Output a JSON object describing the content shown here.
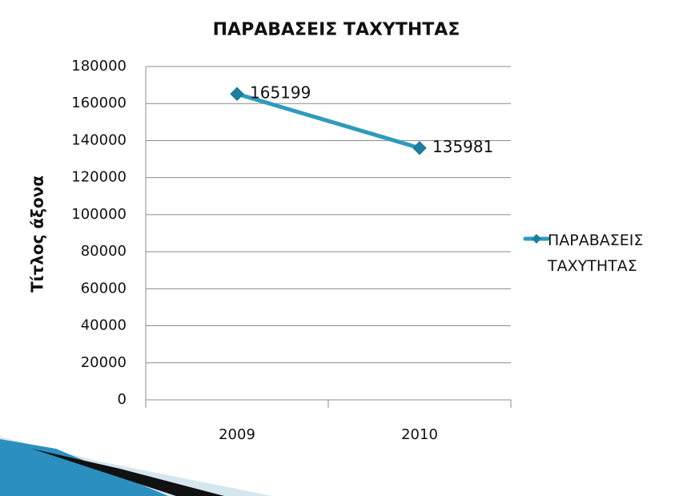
{
  "chart_data": {
    "type": "line",
    "title": "ΠΑΡΑΒΑΣΕΙΣ ΤΑΧΥΤΗΤΑΣ",
    "y_axis_label": "Τίτλος άξονα",
    "categories": [
      "2009",
      "2010"
    ],
    "series": [
      {
        "name": "ΠΑΡΑΒΑΣΕΙΣ ΤΑΧΥΤΗΤΑΣ",
        "color": "#2e9bbd",
        "values": [
          165199,
          135981
        ]
      }
    ],
    "ylim": [
      0,
      180000
    ],
    "yticks": [
      0,
      20000,
      40000,
      60000,
      80000,
      100000,
      120000,
      140000,
      160000,
      180000
    ],
    "grid": true,
    "legend": "right",
    "data_labels": true
  }
}
